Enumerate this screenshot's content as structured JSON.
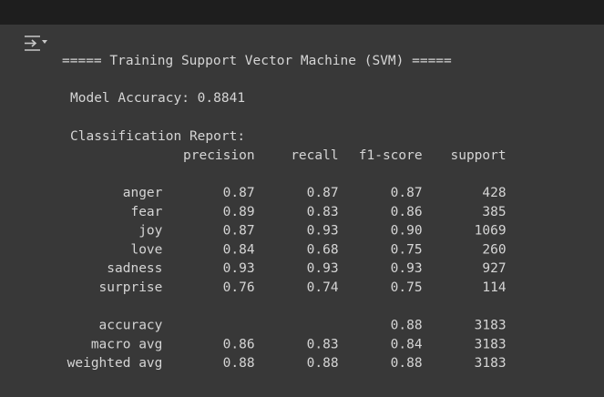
{
  "output": {
    "banner": "===== Training Support Vector Machine (SVM) =====",
    "accuracy_line": "Model Accuracy: 0.8841",
    "report_title": "Classification Report:",
    "report": {
      "columns": [
        "precision",
        "recall",
        "f1-score",
        "support"
      ],
      "rows": [
        [
          "anger",
          "0.87",
          "0.87",
          "0.87",
          "428"
        ],
        [
          "fear",
          "0.89",
          "0.83",
          "0.86",
          "385"
        ],
        [
          "joy",
          "0.87",
          "0.93",
          "0.90",
          "1069"
        ],
        [
          "love",
          "0.84",
          "0.68",
          "0.75",
          "260"
        ],
        [
          "sadness",
          "0.93",
          "0.93",
          "0.93",
          "927"
        ],
        [
          "surprise",
          "0.76",
          "0.74",
          "0.75",
          "114"
        ]
      ],
      "summary": [
        [
          "accuracy",
          null,
          null,
          "0.88",
          "3183"
        ],
        [
          "macro avg",
          "0.86",
          "0.83",
          "0.84",
          "3183"
        ],
        [
          "weighted avg",
          "0.88",
          "0.88",
          "0.88",
          "3183"
        ]
      ]
    }
  }
}
